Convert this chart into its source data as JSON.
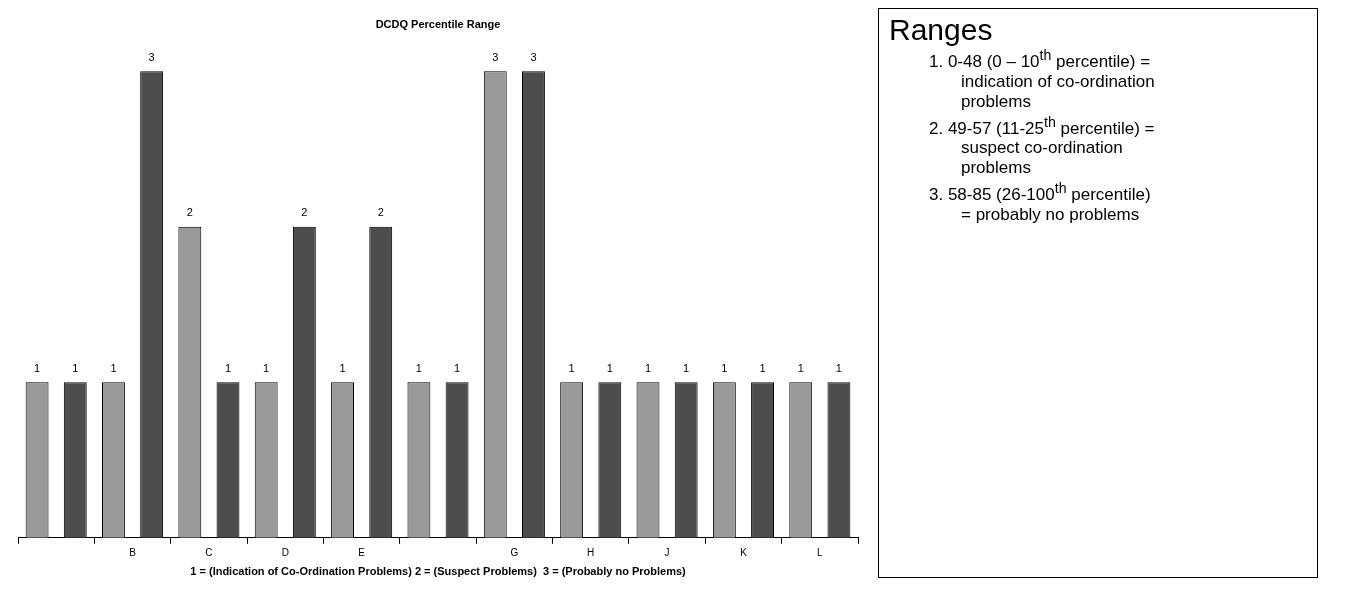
{
  "chart_data": {
    "type": "bar",
    "title": "DCDQ Percentile Range",
    "xlabel": "1 = (Indication of Co-Ordination Problems) 2 = (Suspect Problems)  3 = (Probably no Problems)",
    "categories": [
      null,
      "B",
      "C",
      "D",
      "E",
      null,
      "G",
      "H",
      "J",
      "K",
      "L"
    ],
    "series": [
      {
        "color": "#999999",
        "values": [
          1,
          1,
          2,
          1,
          1,
          1,
          3,
          1,
          1,
          1,
          1
        ]
      },
      {
        "color": "#4d4d4d",
        "values": [
          1,
          3,
          1,
          2,
          2,
          1,
          3,
          1,
          1,
          1,
          1
        ]
      }
    ],
    "data_labels": true,
    "grid": false,
    "legend": false,
    "annotations": [
      "Ranges",
      "1. 0-48 (0 – 10$^{th}$ percentile) = indication of co-ordination problems",
      "2. 49-57 (11-25$^{th}$ percentile) = suspect co-ordination problems",
      "3. 58-85 (26-100$^{th}$ percentile) = probably no problems"
    ]
  }
}
